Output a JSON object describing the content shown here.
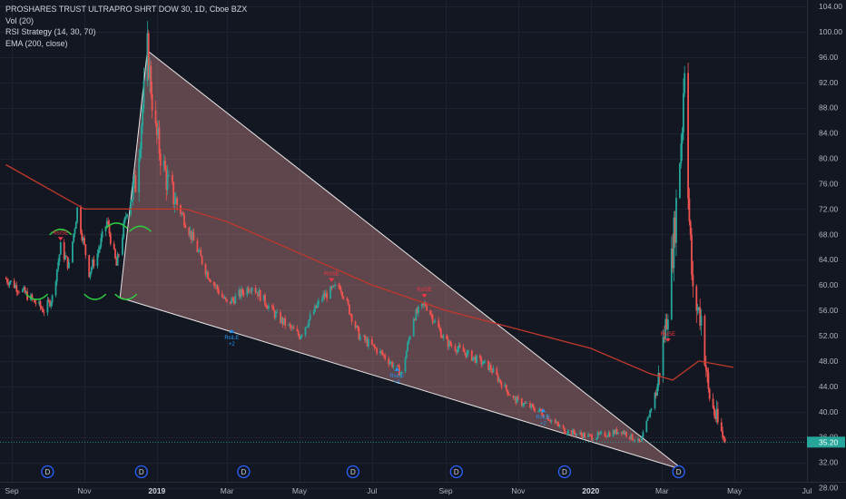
{
  "legend": {
    "symbol": "PROSHARES TRUST ULTRAPRO SHRT DOW 30, 1D, Cboe BZX",
    "volume": "Vol (20)",
    "strategy": "RSI Strategy (14, 30, 70)",
    "ema": "EMA (200, close)"
  },
  "colors": {
    "background": "#131722",
    "grid": "#1e2230",
    "up": "#26a69a",
    "down": "#ef5350",
    "ema": "#c0392b",
    "wedge_fill": "rgba(239,154,154,0.35)",
    "wedge_stroke": "#e6e6e6",
    "arc": "#2ecc40",
    "last_price": "#26a69a",
    "d_marker": "#2962ff"
  },
  "chart_data": {
    "type": "candlestick",
    "ylim": [
      26.5,
      105
    ],
    "y_ticks": [
      "104.00",
      "100.00",
      "96.00",
      "92.00",
      "88.00",
      "84.00",
      "80.00",
      "76.00",
      "72.00",
      "68.00",
      "64.00",
      "60.00",
      "56.00",
      "52.00",
      "48.00",
      "44.00",
      "40.00",
      "36.00",
      "32.00",
      "28.00"
    ],
    "x_ticks": [
      {
        "label": "Sep",
        "date": "2018-09-01",
        "bold": false
      },
      {
        "label": "Nov",
        "date": "2018-11-01",
        "bold": false
      },
      {
        "label": "2019",
        "date": "2019-01-01",
        "bold": true
      },
      {
        "label": "Mar",
        "date": "2019-03-01",
        "bold": false
      },
      {
        "label": "May",
        "date": "2019-05-01",
        "bold": false
      },
      {
        "label": "Jul",
        "date": "2019-07-01",
        "bold": false
      },
      {
        "label": "Sep",
        "date": "2019-09-01",
        "bold": false
      },
      {
        "label": "Nov",
        "date": "2019-11-01",
        "bold": false
      },
      {
        "label": "2020",
        "date": "2020-01-01",
        "bold": true
      },
      {
        "label": "Mar",
        "date": "2020-03-01",
        "bold": false
      },
      {
        "label": "May",
        "date": "2020-05-01",
        "bold": false
      },
      {
        "label": "Jul",
        "date": "2020-07-01",
        "bold": false
      }
    ],
    "last_price": "35.20",
    "series": [
      {
        "date": "2018-08-27",
        "close": 61
      },
      {
        "date": "2018-09-10",
        "close": 59
      },
      {
        "date": "2018-09-28",
        "close": 56
      },
      {
        "date": "2018-10-05",
        "close": 58
      },
      {
        "date": "2018-10-12",
        "close": 66
      },
      {
        "date": "2018-10-19",
        "close": 63
      },
      {
        "date": "2018-10-26",
        "close": 72
      },
      {
        "date": "2018-11-05",
        "close": 62
      },
      {
        "date": "2018-11-12",
        "close": 65
      },
      {
        "date": "2018-11-20",
        "close": 70
      },
      {
        "date": "2018-11-28",
        "close": 63
      },
      {
        "date": "2018-12-07",
        "close": 72
      },
      {
        "date": "2018-12-14",
        "close": 76
      },
      {
        "date": "2018-12-21",
        "close": 90
      },
      {
        "date": "2018-12-24",
        "close": 97
      },
      {
        "date": "2018-12-31",
        "close": 84
      },
      {
        "date": "2019-01-10",
        "close": 76
      },
      {
        "date": "2019-01-25",
        "close": 70
      },
      {
        "date": "2019-02-12",
        "close": 62
      },
      {
        "date": "2019-03-01",
        "close": 57
      },
      {
        "date": "2019-03-22",
        "close": 60
      },
      {
        "date": "2019-04-12",
        "close": 55
      },
      {
        "date": "2019-05-01",
        "close": 52
      },
      {
        "date": "2019-05-20",
        "close": 58
      },
      {
        "date": "2019-06-04",
        "close": 60
      },
      {
        "date": "2019-06-20",
        "close": 52
      },
      {
        "date": "2019-07-10",
        "close": 49
      },
      {
        "date": "2019-07-26",
        "close": 46
      },
      {
        "date": "2019-08-05",
        "close": 55
      },
      {
        "date": "2019-08-15",
        "close": 57
      },
      {
        "date": "2019-09-01",
        "close": 51
      },
      {
        "date": "2019-09-20",
        "close": 49
      },
      {
        "date": "2019-10-08",
        "close": 47
      },
      {
        "date": "2019-10-28",
        "close": 42
      },
      {
        "date": "2019-11-20",
        "close": 40
      },
      {
        "date": "2019-12-10",
        "close": 37
      },
      {
        "date": "2020-01-02",
        "close": 36
      },
      {
        "date": "2020-01-27",
        "close": 37
      },
      {
        "date": "2020-02-12",
        "close": 35
      },
      {
        "date": "2020-02-26",
        "close": 44
      },
      {
        "date": "2020-03-05",
        "close": 55
      },
      {
        "date": "2020-03-12",
        "close": 70
      },
      {
        "date": "2020-03-18",
        "close": 86
      },
      {
        "date": "2020-03-20",
        "close": 96
      },
      {
        "date": "2020-03-24",
        "close": 70
      },
      {
        "date": "2020-03-27",
        "close": 58
      },
      {
        "date": "2020-04-03",
        "close": 55
      },
      {
        "date": "2020-04-09",
        "close": 43
      },
      {
        "date": "2020-04-17",
        "close": 38
      },
      {
        "date": "2020-04-23",
        "close": 35.2
      }
    ],
    "ema": [
      {
        "date": "2018-08-27",
        "value": 79
      },
      {
        "date": "2018-11-01",
        "value": 72
      },
      {
        "date": "2019-01-01",
        "value": 72
      },
      {
        "date": "2019-01-25",
        "value": 72
      },
      {
        "date": "2019-03-01",
        "value": 70
      },
      {
        "date": "2019-05-01",
        "value": 65
      },
      {
        "date": "2019-07-01",
        "value": 60
      },
      {
        "date": "2019-09-01",
        "value": 56
      },
      {
        "date": "2019-11-01",
        "value": 53
      },
      {
        "date": "2020-01-01",
        "value": 50
      },
      {
        "date": "2020-02-20",
        "value": 46
      },
      {
        "date": "2020-03-10",
        "value": 45
      },
      {
        "date": "2020-04-01",
        "value": 48
      },
      {
        "date": "2020-04-30",
        "value": 47
      }
    ],
    "wedge": [
      {
        "date": "2018-12-24",
        "price": 97
      },
      {
        "date": "2018-12-01",
        "price": 58
      },
      {
        "date": "2020-03-19",
        "price": 30.8
      }
    ],
    "signals": [
      {
        "date": "2018-10-12",
        "price": 67,
        "type": "sell",
        "label": "RsiSE"
      },
      {
        "date": "2019-03-05",
        "price": 53,
        "type": "buy",
        "label": "RsiLE"
      },
      {
        "date": "2019-05-28",
        "price": 60.5,
        "type": "sell",
        "label": "RsiSE"
      },
      {
        "date": "2019-07-22",
        "price": 47,
        "type": "buy",
        "label": "RsiLE"
      },
      {
        "date": "2019-08-14",
        "price": 58,
        "type": "sell",
        "label": "RsiSE"
      },
      {
        "date": "2019-11-22",
        "price": 40.5,
        "type": "buy",
        "label": "RsiLE"
      },
      {
        "date": "2020-03-06",
        "price": 51,
        "type": "sell",
        "label": "RsiSE"
      }
    ],
    "arcs": [
      {
        "date": "2018-10-12",
        "price": 68.5,
        "dir": "top"
      },
      {
        "date": "2018-09-22",
        "price": 58,
        "dir": "bottom"
      },
      {
        "date": "2018-11-28",
        "price": 69.5,
        "dir": "top"
      },
      {
        "date": "2018-11-10",
        "price": 58,
        "dir": "bottom"
      },
      {
        "date": "2018-12-18",
        "price": 69,
        "dir": "top"
      },
      {
        "date": "2018-12-06",
        "price": 58,
        "dir": "bottom"
      }
    ],
    "d_markers": [
      "2018-10-01",
      "2018-12-19",
      "2019-03-15",
      "2019-06-15",
      "2019-09-10",
      "2019-12-10",
      "2020-03-15"
    ],
    "d_label": "D"
  }
}
